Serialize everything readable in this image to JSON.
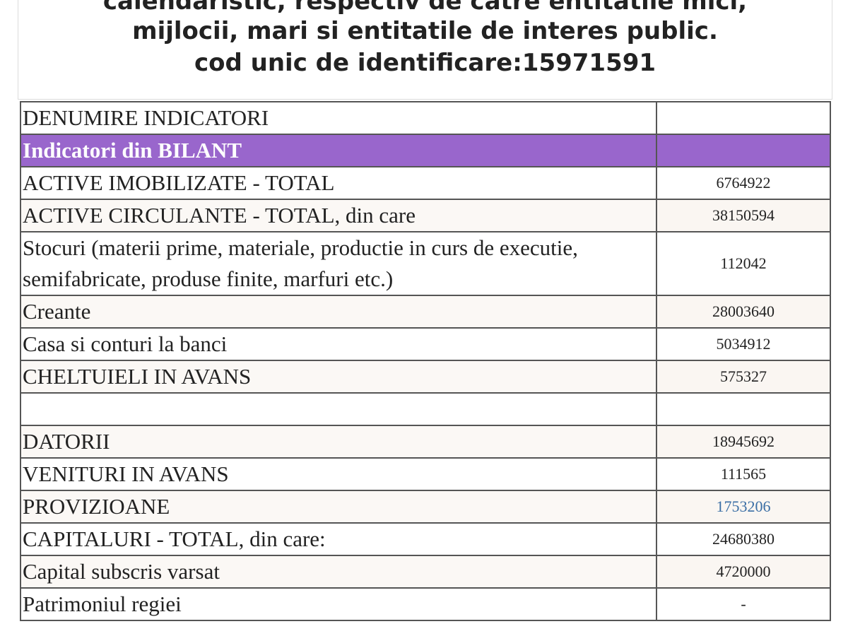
{
  "header": {
    "title_lines": [
      "calendaristic, respectiv de catre entitatile mici,",
      "mijlocii, mari si entitatile de interes public.",
      "cod unic de identificare:15971591"
    ]
  },
  "table": {
    "column_header": "DENUMIRE INDICATORI",
    "section": "Indicatori din BILANT",
    "rows": [
      [
        "ACTIVE IMOBILIZATE - TOTAL",
        6764922
      ],
      [
        "ACTIVE CIRCULANTE - TOTAL, din care",
        38150594
      ],
      [
        "Stocuri (materii prime, materiale, productie in curs de executie, semifabricate, produse finite, marfuri etc.)",
        112042
      ],
      [
        "Creante",
        28003640
      ],
      [
        "Casa si conturi la banci",
        5034912
      ],
      [
        "CHELTUIELI IN AVANS",
        575327
      ],
      [
        "DATORII",
        18945692
      ],
      [
        "VENITURI IN AVANS",
        111565
      ],
      [
        "PROVIZIOANE",
        1753206
      ],
      [
        "CAPITALURI - TOTAL, din care:",
        24680380
      ],
      [
        "Capital subscris varsat",
        4720000
      ],
      [
        "Patrimoniul regiei",
        "-"
      ]
    ]
  }
}
